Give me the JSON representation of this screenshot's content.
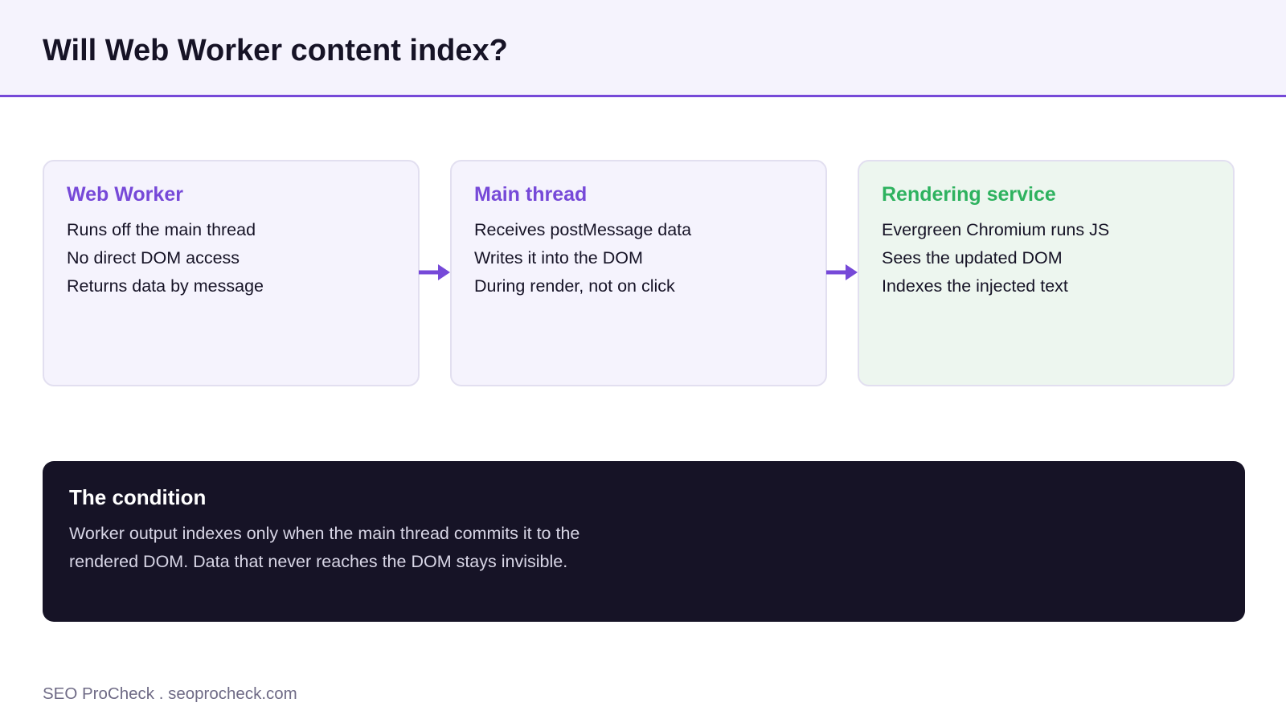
{
  "header": {
    "title": "Will Web Worker content index?"
  },
  "flow": {
    "steps": [
      {
        "title": "Web Worker",
        "lines": [
          "Runs off the main thread",
          "No direct DOM access",
          "Returns data by message"
        ]
      },
      {
        "title": "Main thread",
        "lines": [
          "Receives postMessage data",
          "Writes it into the DOM",
          "During render, not on click"
        ]
      },
      {
        "title": "Rendering service",
        "lines": [
          "Evergreen Chromium runs JS",
          "Sees the updated DOM",
          "Indexes the injected text"
        ]
      }
    ],
    "arrow_icon": "arrow-right-icon"
  },
  "callout": {
    "title": "The condition",
    "body": "Worker output indexes only when the main thread commits it to the rendered DOM. Data that never reaches the DOM stays invisible."
  },
  "footer": {
    "text": "SEO ProCheck . seoprocheck.com"
  },
  "colors": {
    "accent": "#7649d8",
    "success": "#2eb25f",
    "header_bg": "#f5f3fd",
    "card_bg": "#f5f3fd",
    "success_card_bg": "#edf6ef",
    "callout_bg": "#161326",
    "text": "#161326"
  }
}
